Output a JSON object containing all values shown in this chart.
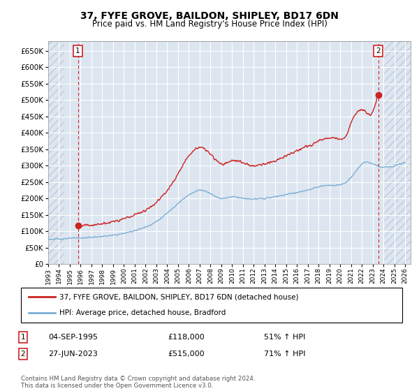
{
  "title": "37, FYFE GROVE, BAILDON, SHIPLEY, BD17 6DN",
  "subtitle": "Price paid vs. HM Land Registry's House Price Index (HPI)",
  "ylim": [
    0,
    680000
  ],
  "yticks": [
    0,
    50000,
    100000,
    150000,
    200000,
    250000,
    300000,
    350000,
    400000,
    450000,
    500000,
    550000,
    600000,
    650000
  ],
  "xlim_start": 1993.0,
  "xlim_end": 2026.5,
  "hpi_color": "#7bafd4",
  "price_color": "#cc2222",
  "bg_color": "#dde6f0",
  "hatch_edgecolor": "#c0ccdc",
  "grid_color": "#ffffff",
  "sale1_x": 1995.75,
  "sale1_y": 118000,
  "sale2_x": 2023.5,
  "sale2_y": 515000,
  "legend_label1": "37, FYFE GROVE, BAILDON, SHIPLEY, BD17 6DN (detached house)",
  "legend_label2": "HPI: Average price, detached house, Bradford",
  "annotation1_label": "1",
  "annotation1_date": "04-SEP-1995",
  "annotation1_price": "£118,000",
  "annotation1_hpi": "51% ↑ HPI",
  "annotation2_label": "2",
  "annotation2_date": "27-JUN-2023",
  "annotation2_price": "£515,000",
  "annotation2_hpi": "71% ↑ HPI",
  "footer": "Contains HM Land Registry data © Crown copyright and database right 2024.\nThis data is licensed under the Open Government Licence v3.0.",
  "xtick_years": [
    1993,
    1994,
    1995,
    1996,
    1997,
    1998,
    1999,
    2000,
    2001,
    2002,
    2003,
    2004,
    2005,
    2006,
    2007,
    2008,
    2009,
    2010,
    2011,
    2012,
    2013,
    2014,
    2015,
    2016,
    2017,
    2018,
    2019,
    2020,
    2021,
    2022,
    2023,
    2024,
    2025,
    2026
  ],
  "hatch_left_end": 1994.5,
  "hatch_right_start": 2024.0
}
